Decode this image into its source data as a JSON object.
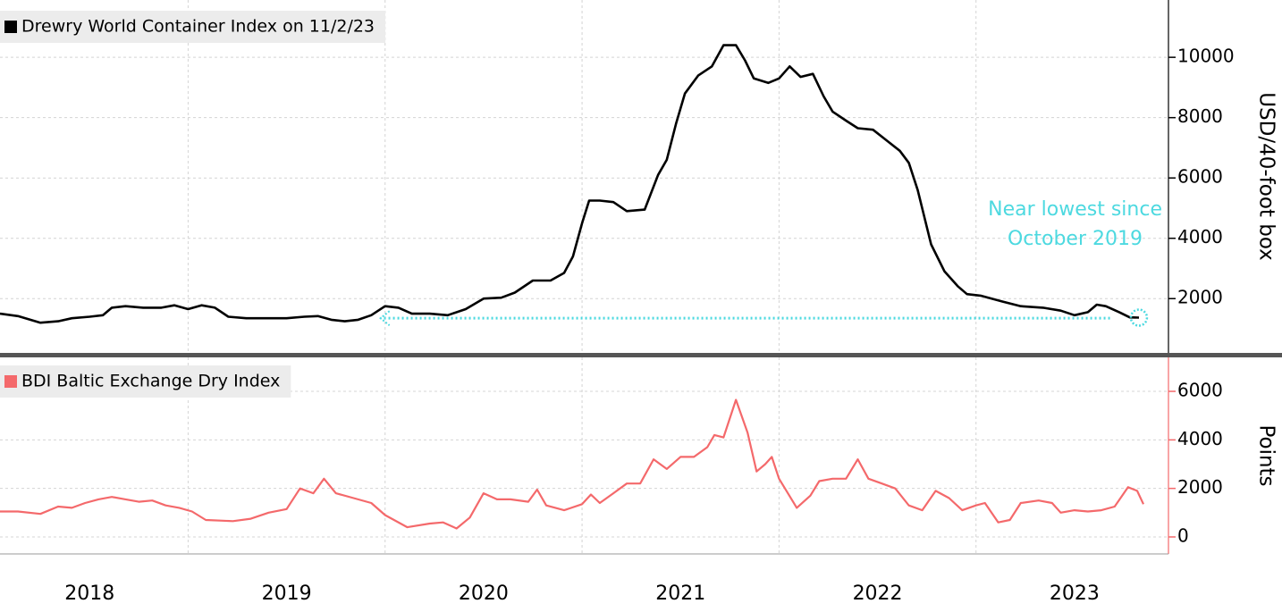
{
  "chart_data": [
    {
      "type": "line",
      "legend": "Drewry World Container Index on 11/2/23",
      "ylabel": "USD/40-foot box",
      "xlim": [
        2018.045,
        2023.977
      ],
      "ylim": [
        200,
        11900
      ],
      "yticks": [
        2000,
        4000,
        6000,
        8000,
        10000
      ],
      "xgrid": [
        2019,
        2020,
        2021,
        2022,
        2023
      ],
      "grid": true,
      "series": [
        {
          "name": "Drewry World Container Index on 11/2/23",
          "color": "#000000",
          "x": [
            2018.045,
            2018.136,
            2018.25,
            2018.34,
            2018.41,
            2018.5,
            2018.568,
            2018.613,
            2018.682,
            2018.772,
            2018.864,
            2018.931,
            2019.0,
            2019.068,
            2019.136,
            2019.204,
            2019.295,
            2019.409,
            2019.5,
            2019.59,
            2019.659,
            2019.727,
            2019.795,
            2019.863,
            2019.93,
            2020.0,
            2020.068,
            2020.136,
            2020.227,
            2020.318,
            2020.409,
            2020.5,
            2020.59,
            2020.659,
            2020.75,
            2020.84,
            2020.909,
            2020.954,
            2021.0,
            2021.036,
            2021.09,
            2021.159,
            2021.227,
            2021.318,
            2021.386,
            2021.43,
            2021.477,
            2021.522,
            2021.59,
            2021.659,
            2021.718,
            2021.781,
            2021.827,
            2021.872,
            2021.945,
            2022.0,
            2022.054,
            2022.109,
            2022.172,
            2022.227,
            2022.272,
            2022.34,
            2022.4,
            2022.477,
            2022.545,
            2022.613,
            2022.659,
            2022.704,
            2022.772,
            2022.84,
            2022.909,
            2022.954,
            2023.023,
            2023.136,
            2023.227,
            2023.34,
            2023.43,
            2023.5,
            2023.568,
            2023.613,
            2023.659,
            2023.727,
            2023.78,
            2023.827
          ],
          "values": [
            1500,
            1420,
            1200,
            1250,
            1350,
            1400,
            1450,
            1700,
            1750,
            1700,
            1700,
            1780,
            1650,
            1780,
            1700,
            1400,
            1350,
            1350,
            1350,
            1400,
            1420,
            1300,
            1250,
            1300,
            1450,
            1750,
            1700,
            1500,
            1500,
            1450,
            1650,
            2000,
            2030,
            2200,
            2600,
            2600,
            2850,
            3400,
            4500,
            5250,
            5250,
            5200,
            4900,
            4950,
            6100,
            6600,
            7800,
            8800,
            9400,
            9700,
            10400,
            10400,
            9900,
            9300,
            9150,
            9300,
            9700,
            9350,
            9450,
            8700,
            8200,
            7900,
            7650,
            7600,
            7250,
            6900,
            6500,
            5600,
            3800,
            2900,
            2400,
            2150,
            2100,
            1900,
            1750,
            1700,
            1600,
            1450,
            1550,
            1800,
            1750,
            1550,
            1380,
            1370
          ]
        }
      ],
      "annotation": {
        "text": [
          "Near lowest since",
          "October 2019"
        ],
        "arrow_from": [
          2023.68,
          1350
        ],
        "arrow_to": [
          2019.977,
          1350
        ],
        "circle": [
          2023.827,
          1370
        ]
      }
    },
    {
      "type": "line",
      "legend": "BDI Baltic Exchange Dry Index",
      "ylabel": "Points",
      "xlim": [
        2018.045,
        2023.977
      ],
      "ylim": [
        -700,
        7400
      ],
      "yticks": [
        0,
        2000,
        4000,
        6000
      ],
      "xgrid": [
        2019,
        2020,
        2021,
        2022,
        2023
      ],
      "xticks": [
        {
          "value": 2018.5,
          "label": "2018"
        },
        {
          "value": 2019.5,
          "label": "2019"
        },
        {
          "value": 2020.5,
          "label": "2020"
        },
        {
          "value": 2021.5,
          "label": "2021"
        },
        {
          "value": 2022.5,
          "label": "2022"
        },
        {
          "value": 2023.5,
          "label": "2023"
        }
      ],
      "grid": true,
      "series": [
        {
          "name": "BDI Baltic Exchange Dry Index",
          "color": "#f4696b",
          "x": [
            2018.045,
            2018.136,
            2018.25,
            2018.34,
            2018.41,
            2018.477,
            2018.545,
            2018.613,
            2018.682,
            2018.75,
            2018.818,
            2018.886,
            2018.955,
            2019.02,
            2019.09,
            2019.227,
            2019.318,
            2019.409,
            2019.5,
            2019.568,
            2019.636,
            2019.69,
            2019.75,
            2019.84,
            2019.93,
            2020.0,
            2020.113,
            2020.227,
            2020.295,
            2020.363,
            2020.43,
            2020.5,
            2020.568,
            2020.636,
            2020.727,
            2020.772,
            2020.818,
            2020.909,
            2021.0,
            2021.045,
            2021.09,
            2021.159,
            2021.227,
            2021.295,
            2021.363,
            2021.43,
            2021.5,
            2021.568,
            2021.636,
            2021.672,
            2021.718,
            2021.781,
            2021.84,
            2021.886,
            2021.93,
            2021.963,
            2022.0,
            2022.045,
            2022.09,
            2022.159,
            2022.204,
            2022.272,
            2022.34,
            2022.4,
            2022.454,
            2022.522,
            2022.59,
            2022.659,
            2022.727,
            2022.795,
            2022.863,
            2022.93,
            2023.0,
            2023.045,
            2023.113,
            2023.172,
            2023.227,
            2023.318,
            2023.386,
            2023.43,
            2023.5,
            2023.568,
            2023.636,
            2023.704,
            2023.772,
            2023.818,
            2023.85
          ],
          "values": [
            1050,
            1050,
            950,
            1250,
            1200,
            1400,
            1550,
            1650,
            1550,
            1450,
            1500,
            1300,
            1200,
            1050,
            700,
            650,
            750,
            1000,
            1150,
            2000,
            1800,
            2400,
            1800,
            1600,
            1400,
            900,
            400,
            550,
            600,
            350,
            800,
            1800,
            1550,
            1550,
            1450,
            1950,
            1300,
            1100,
            1350,
            1750,
            1400,
            1800,
            2200,
            2200,
            3200,
            2800,
            3300,
            3300,
            3700,
            4200,
            4100,
            5650,
            4300,
            2700,
            3000,
            3300,
            2400,
            1800,
            1200,
            1700,
            2300,
            2400,
            2400,
            3200,
            2400,
            2200,
            2000,
            1300,
            1100,
            1900,
            1600,
            1100,
            1300,
            1400,
            600,
            700,
            1400,
            1500,
            1400,
            1000,
            1100,
            1050,
            1100,
            1250,
            2050,
            1900,
            1350
          ]
        }
      ]
    }
  ]
}
